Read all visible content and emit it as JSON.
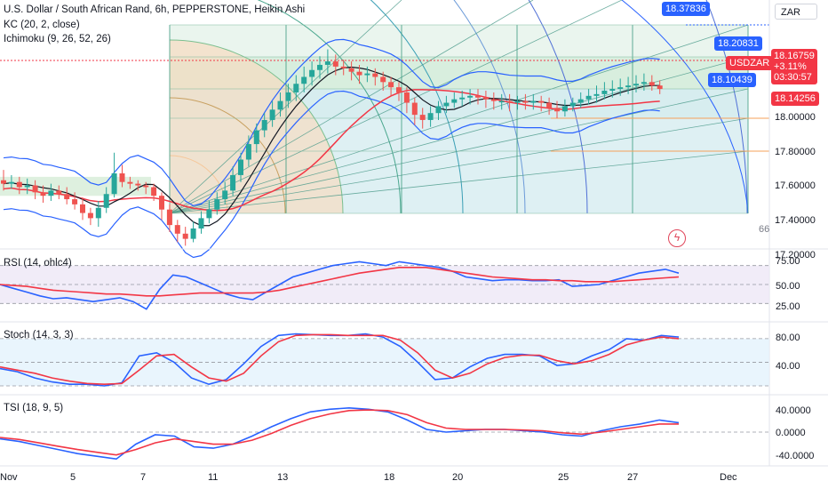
{
  "header": {
    "title": "U.S. Dollar / South African Rand, 6h, PEPPERSTONE, Heikin Ashi",
    "ind1": "KC (20, 2, close)",
    "ind2": "Ichimoku (9, 26, 52, 26)"
  },
  "currency": "ZAR",
  "colors": {
    "up": "#26a69a",
    "down": "#ef5350",
    "blue": "#2962ff",
    "red": "#f23645",
    "black": "#131722"
  },
  "price_axis": {
    "ticks": [
      "18.00000",
      "17.80000",
      "17.60000",
      "17.40000",
      "17.20000"
    ]
  },
  "price_tags": {
    "level1": "18.37836",
    "level2": "18.20831",
    "level3": "18.10439",
    "symbol": "USDZAR",
    "last": "18.16759",
    "change": "+3.11%",
    "countdown": "03:30:57",
    "kc_mid": "18.14256"
  },
  "side_label": "66",
  "x_axis": {
    "labels": [
      "Nov",
      "5",
      "7",
      "11",
      "13",
      "18",
      "20",
      "25",
      "27",
      "Dec"
    ]
  },
  "chart_data": [
    {
      "type": "candlestick",
      "title": "U.S. Dollar / South African Rand, 6h, PEPPERSTONE, Heikin Ashi",
      "ylim": [
        17.2,
        18.5
      ],
      "candles": [
        {
          "o": 17.64,
          "c": 17.62,
          "h": 17.7,
          "l": 17.58
        },
        {
          "o": 17.62,
          "c": 17.63,
          "h": 17.67,
          "l": 17.59
        },
        {
          "o": 17.63,
          "c": 17.6,
          "h": 17.66,
          "l": 17.56
        },
        {
          "o": 17.6,
          "c": 17.61,
          "h": 17.65,
          "l": 17.56
        },
        {
          "o": 17.61,
          "c": 17.57,
          "h": 17.64,
          "l": 17.53
        },
        {
          "o": 17.57,
          "c": 17.55,
          "h": 17.61,
          "l": 17.51
        },
        {
          "o": 17.55,
          "c": 17.58,
          "h": 17.62,
          "l": 17.52
        },
        {
          "o": 17.58,
          "c": 17.56,
          "h": 17.61,
          "l": 17.53
        },
        {
          "o": 17.56,
          "c": 17.53,
          "h": 17.6,
          "l": 17.5
        },
        {
          "o": 17.53,
          "c": 17.5,
          "h": 17.57,
          "l": 17.47
        },
        {
          "o": 17.5,
          "c": 17.45,
          "h": 17.54,
          "l": 17.41
        },
        {
          "o": 17.45,
          "c": 17.42,
          "h": 17.48,
          "l": 17.38
        },
        {
          "o": 17.42,
          "c": 17.48,
          "h": 17.52,
          "l": 17.37
        },
        {
          "o": 17.48,
          "c": 17.56,
          "h": 17.6,
          "l": 17.45
        },
        {
          "o": 17.56,
          "c": 17.68,
          "h": 17.8,
          "l": 17.54
        },
        {
          "o": 17.68,
          "c": 17.63,
          "h": 17.73,
          "l": 17.6
        },
        {
          "o": 17.63,
          "c": 17.62,
          "h": 17.66,
          "l": 17.59
        },
        {
          "o": 17.62,
          "c": 17.61,
          "h": 17.64,
          "l": 17.58
        },
        {
          "o": 17.61,
          "c": 17.6,
          "h": 17.63,
          "l": 17.56
        },
        {
          "o": 17.6,
          "c": 17.55,
          "h": 17.62,
          "l": 17.52
        },
        {
          "o": 17.55,
          "c": 17.47,
          "h": 17.57,
          "l": 17.41
        },
        {
          "o": 17.47,
          "c": 17.38,
          "h": 17.5,
          "l": 17.34
        },
        {
          "o": 17.38,
          "c": 17.33,
          "h": 17.41,
          "l": 17.28
        },
        {
          "o": 17.33,
          "c": 17.3,
          "h": 17.37,
          "l": 17.26
        },
        {
          "o": 17.3,
          "c": 17.36,
          "h": 17.4,
          "l": 17.28
        },
        {
          "o": 17.36,
          "c": 17.42,
          "h": 17.46,
          "l": 17.33
        },
        {
          "o": 17.42,
          "c": 17.47,
          "h": 17.52,
          "l": 17.39
        },
        {
          "o": 17.47,
          "c": 17.53,
          "h": 17.57,
          "l": 17.44
        },
        {
          "o": 17.53,
          "c": 17.58,
          "h": 17.63,
          "l": 17.5
        },
        {
          "o": 17.58,
          "c": 17.67,
          "h": 17.72,
          "l": 17.55
        },
        {
          "o": 17.67,
          "c": 17.76,
          "h": 17.8,
          "l": 17.63
        },
        {
          "o": 17.76,
          "c": 17.85,
          "h": 17.9,
          "l": 17.72
        },
        {
          "o": 17.85,
          "c": 17.93,
          "h": 17.97,
          "l": 17.8
        },
        {
          "o": 17.93,
          "c": 17.99,
          "h": 18.03,
          "l": 17.89
        },
        {
          "o": 17.99,
          "c": 18.05,
          "h": 18.1,
          "l": 17.95
        },
        {
          "o": 18.05,
          "c": 18.1,
          "h": 18.15,
          "l": 18.01
        },
        {
          "o": 18.1,
          "c": 18.15,
          "h": 18.2,
          "l": 18.06
        },
        {
          "o": 18.15,
          "c": 18.2,
          "h": 18.25,
          "l": 18.1
        },
        {
          "o": 18.2,
          "c": 18.24,
          "h": 18.3,
          "l": 18.15
        },
        {
          "o": 18.24,
          "c": 18.28,
          "h": 18.33,
          "l": 18.19
        },
        {
          "o": 18.28,
          "c": 18.31,
          "h": 18.36,
          "l": 18.23
        },
        {
          "o": 18.31,
          "c": 18.33,
          "h": 18.4,
          "l": 18.26
        },
        {
          "o": 18.33,
          "c": 18.3,
          "h": 18.37,
          "l": 18.25
        },
        {
          "o": 18.3,
          "c": 18.29,
          "h": 18.34,
          "l": 18.25
        },
        {
          "o": 18.29,
          "c": 18.27,
          "h": 18.33,
          "l": 18.22
        },
        {
          "o": 18.27,
          "c": 18.25,
          "h": 18.31,
          "l": 18.2
        },
        {
          "o": 18.25,
          "c": 18.26,
          "h": 18.3,
          "l": 18.21
        },
        {
          "o": 18.26,
          "c": 18.24,
          "h": 18.29,
          "l": 18.19
        },
        {
          "o": 18.24,
          "c": 18.21,
          "h": 18.27,
          "l": 18.16
        },
        {
          "o": 18.21,
          "c": 18.18,
          "h": 18.24,
          "l": 18.13
        },
        {
          "o": 18.18,
          "c": 18.15,
          "h": 18.21,
          "l": 18.1
        },
        {
          "o": 18.15,
          "c": 18.09,
          "h": 18.18,
          "l": 18.03
        },
        {
          "o": 18.09,
          "c": 18.02,
          "h": 18.12,
          "l": 17.96
        },
        {
          "o": 18.02,
          "c": 17.99,
          "h": 18.06,
          "l": 17.94
        },
        {
          "o": 17.99,
          "c": 18.03,
          "h": 18.07,
          "l": 17.95
        },
        {
          "o": 18.03,
          "c": 18.07,
          "h": 18.1,
          "l": 17.99
        },
        {
          "o": 18.07,
          "c": 18.09,
          "h": 18.13,
          "l": 18.03
        },
        {
          "o": 18.09,
          "c": 18.11,
          "h": 18.15,
          "l": 18.06
        },
        {
          "o": 18.11,
          "c": 18.12,
          "h": 18.16,
          "l": 18.07
        },
        {
          "o": 18.12,
          "c": 18.13,
          "h": 18.17,
          "l": 18.08
        },
        {
          "o": 18.13,
          "c": 18.12,
          "h": 18.17,
          "l": 18.08
        },
        {
          "o": 18.12,
          "c": 18.11,
          "h": 18.16,
          "l": 18.06
        },
        {
          "o": 18.11,
          "c": 18.1,
          "h": 18.15,
          "l": 18.05
        },
        {
          "o": 18.1,
          "c": 18.1,
          "h": 18.14,
          "l": 18.05
        },
        {
          "o": 18.1,
          "c": 18.09,
          "h": 18.14,
          "l": 18.04
        },
        {
          "o": 18.09,
          "c": 18.1,
          "h": 18.13,
          "l": 18.05
        },
        {
          "o": 18.1,
          "c": 18.09,
          "h": 18.14,
          "l": 18.05
        },
        {
          "o": 18.09,
          "c": 18.1,
          "h": 18.14,
          "l": 18.05
        },
        {
          "o": 18.1,
          "c": 18.09,
          "h": 18.13,
          "l": 18.04
        },
        {
          "o": 18.09,
          "c": 18.06,
          "h": 18.12,
          "l": 18.02
        },
        {
          "o": 18.06,
          "c": 18.04,
          "h": 18.1,
          "l": 18.0
        },
        {
          "o": 18.04,
          "c": 18.07,
          "h": 18.11,
          "l": 18.01
        },
        {
          "o": 18.07,
          "c": 18.09,
          "h": 18.12,
          "l": 18.04
        },
        {
          "o": 18.09,
          "c": 18.11,
          "h": 18.15,
          "l": 18.06
        },
        {
          "o": 18.11,
          "c": 18.13,
          "h": 18.17,
          "l": 18.08
        },
        {
          "o": 18.13,
          "c": 18.14,
          "h": 18.19,
          "l": 18.09
        },
        {
          "o": 18.14,
          "c": 18.16,
          "h": 18.21,
          "l": 18.11
        },
        {
          "o": 18.16,
          "c": 18.17,
          "h": 18.22,
          "l": 18.12
        },
        {
          "o": 18.17,
          "c": 18.18,
          "h": 18.23,
          "l": 18.13
        },
        {
          "o": 18.18,
          "c": 18.19,
          "h": 18.24,
          "l": 18.14
        },
        {
          "o": 18.19,
          "c": 18.2,
          "h": 18.25,
          "l": 18.15
        },
        {
          "o": 18.2,
          "c": 18.21,
          "h": 18.26,
          "l": 18.16
        },
        {
          "o": 18.21,
          "c": 18.19,
          "h": 18.25,
          "l": 18.16
        },
        {
          "o": 18.19,
          "c": 18.17,
          "h": 18.22,
          "l": 18.14
        }
      ]
    },
    {
      "type": "line",
      "title": "RSI (14, ohlc4)",
      "ylim": [
        20,
        80
      ],
      "ticks": [
        "75.00",
        "50.00",
        "25.00"
      ],
      "levels": [
        70,
        50,
        30
      ],
      "series": [
        {
          "color": "#2962ff",
          "values": [
            50,
            46,
            42,
            38,
            35,
            36,
            34,
            32,
            34,
            36,
            32,
            24,
            45,
            60,
            58,
            52,
            46,
            40,
            36,
            34,
            42,
            50,
            58,
            62,
            66,
            70,
            72,
            74,
            72,
            70,
            74,
            72,
            70,
            68,
            64,
            58,
            56,
            54,
            55,
            55,
            54,
            54,
            55,
            48,
            49,
            50,
            54,
            58,
            62,
            64,
            66,
            62
          ]
        },
        {
          "color": "#f23645",
          "values": [
            50,
            49,
            48,
            46,
            44,
            43,
            42,
            41,
            40,
            40,
            39,
            38,
            38,
            39,
            40,
            41,
            41,
            41,
            41,
            41,
            42,
            44,
            47,
            50,
            53,
            56,
            59,
            62,
            64,
            66,
            68,
            68,
            68,
            66,
            64,
            62,
            60,
            58,
            57,
            56,
            55,
            55,
            54,
            54,
            53,
            53,
            53,
            54,
            55,
            56,
            57,
            58
          ]
        }
      ]
    },
    {
      "type": "line",
      "title": "Stoch (14, 3, 3)",
      "ylim": [
        20,
        90
      ],
      "ticks": [
        "80.00",
        "40.00"
      ],
      "levels": [
        80,
        50,
        20
      ],
      "series": [
        {
          "color": "#2962ff",
          "values": [
            42,
            38,
            30,
            25,
            22,
            22,
            20,
            24,
            58,
            62,
            50,
            30,
            22,
            28,
            48,
            70,
            84,
            86,
            85,
            84,
            84,
            86,
            82,
            70,
            50,
            28,
            30,
            44,
            55,
            60,
            60,
            58,
            46,
            48,
            58,
            66,
            80,
            78,
            84,
            82
          ]
        },
        {
          "color": "#f23645",
          "values": [
            44,
            40,
            36,
            30,
            26,
            23,
            22,
            23,
            40,
            58,
            60,
            44,
            30,
            26,
            36,
            58,
            76,
            84,
            85,
            85,
            84,
            84,
            84,
            78,
            62,
            40,
            30,
            36,
            48,
            56,
            59,
            59,
            52,
            48,
            52,
            60,
            72,
            78,
            82,
            80
          ]
        }
      ]
    },
    {
      "type": "line",
      "title": "TSI (18, 9, 5)",
      "ylim": [
        -45,
        45
      ],
      "ticks": [
        "40.0000",
        "0.0000",
        "-40.0000"
      ],
      "levels": [
        0
      ],
      "series": [
        {
          "color": "#2962ff",
          "values": [
            -10,
            -14,
            -20,
            -26,
            -32,
            -36,
            -40,
            -18,
            -4,
            -6,
            -22,
            -24,
            -18,
            -6,
            8,
            20,
            30,
            34,
            36,
            34,
            30,
            18,
            4,
            0,
            2,
            4,
            4,
            2,
            0,
            -4,
            -6,
            2,
            8,
            12,
            18,
            14
          ]
        },
        {
          "color": "#f23645",
          "values": [
            -8,
            -11,
            -16,
            -21,
            -26,
            -30,
            -34,
            -26,
            -16,
            -10,
            -14,
            -18,
            -18,
            -12,
            -2,
            10,
            20,
            27,
            32,
            33,
            32,
            26,
            14,
            6,
            4,
            4,
            4,
            3,
            2,
            -1,
            -3,
            0,
            4,
            8,
            12,
            12
          ]
        }
      ]
    }
  ]
}
